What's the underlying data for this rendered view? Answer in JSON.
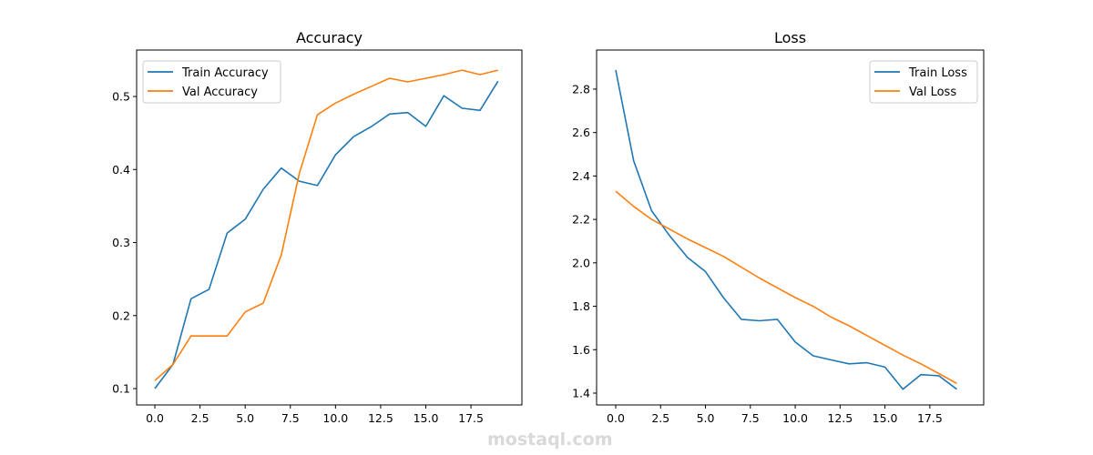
{
  "chart_data": [
    {
      "type": "line",
      "title": "Accuracy",
      "xlabel": "",
      "ylabel": "",
      "xlim": [
        -1.01,
        20.32
      ],
      "ylim": [
        0.0776,
        0.5636
      ],
      "xticks": [
        0,
        2.5,
        5,
        7.5,
        10,
        12.5,
        15,
        17.5
      ],
      "xtick_labels": [
        "0.0",
        "2.5",
        "5.0",
        "7.5",
        "10.0",
        "12.5",
        "15.0",
        "17.5"
      ],
      "yticks": [
        0.1,
        0.2,
        0.3,
        0.4,
        0.5
      ],
      "ytick_labels": [
        "0.1",
        "0.2",
        "0.3",
        "0.4",
        "0.5"
      ],
      "grid": false,
      "legend": "upper-left",
      "x": [
        0,
        1,
        2,
        3,
        4,
        5,
        6,
        7,
        8,
        9,
        10,
        11,
        12,
        13,
        14,
        15,
        16,
        17,
        18,
        19
      ],
      "series": [
        {
          "name": "Train Accuracy",
          "color": "#1f77b4",
          "values": [
            0.1,
            0.133,
            0.223,
            0.236,
            0.313,
            0.332,
            0.373,
            0.402,
            0.384,
            0.378,
            0.42,
            0.445,
            0.459,
            0.476,
            0.478,
            0.459,
            0.501,
            0.484,
            0.481,
            0.521
          ]
        },
        {
          "name": "Val Accuracy",
          "color": "#ff7f0e",
          "values": [
            0.111,
            0.133,
            0.172,
            0.172,
            0.172,
            0.205,
            0.217,
            0.283,
            0.395,
            0.475,
            0.491,
            0.503,
            0.514,
            0.525,
            0.52,
            0.525,
            0.53,
            0.536,
            0.53,
            0.536
          ]
        }
      ]
    },
    {
      "type": "line",
      "title": "Loss",
      "xlabel": "",
      "ylabel": "",
      "xlim": [
        -1.065,
        20.5
      ],
      "ylim": [
        1.3455,
        2.98
      ],
      "xticks": [
        0,
        2.5,
        5,
        7.5,
        10,
        12.5,
        15,
        17.5
      ],
      "xtick_labels": [
        "0.0",
        "2.5",
        "5.0",
        "7.5",
        "10.0",
        "12.5",
        "15.0",
        "17.5"
      ],
      "yticks": [
        1.4,
        1.6,
        1.8,
        2.0,
        2.2,
        2.4,
        2.6,
        2.8
      ],
      "ytick_labels": [
        "1.4",
        "1.6",
        "1.8",
        "2.0",
        "2.2",
        "2.4",
        "2.6",
        "2.8"
      ],
      "grid": false,
      "legend": "upper-right",
      "x": [
        0,
        1,
        2,
        3,
        4,
        5,
        6,
        7,
        8,
        9,
        10,
        11,
        12,
        13,
        14,
        15,
        16,
        17,
        18,
        19
      ],
      "series": [
        {
          "name": "Train Loss",
          "color": "#1f77b4",
          "values": [
            2.888,
            2.47,
            2.24,
            2.125,
            2.025,
            1.96,
            1.84,
            1.74,
            1.733,
            1.74,
            1.635,
            1.572,
            1.553,
            1.535,
            1.54,
            1.52,
            1.418,
            1.485,
            1.48,
            1.418
          ]
        },
        {
          "name": "Val Loss",
          "color": "#ff7f0e",
          "values": [
            2.33,
            2.26,
            2.2,
            2.155,
            2.11,
            2.07,
            2.03,
            1.98,
            1.93,
            1.885,
            1.84,
            1.8,
            1.75,
            1.71,
            1.665,
            1.62,
            1.575,
            1.535,
            1.49,
            1.445
          ]
        }
      ]
    }
  ],
  "watermark": {
    "text": "mostaql.com"
  }
}
